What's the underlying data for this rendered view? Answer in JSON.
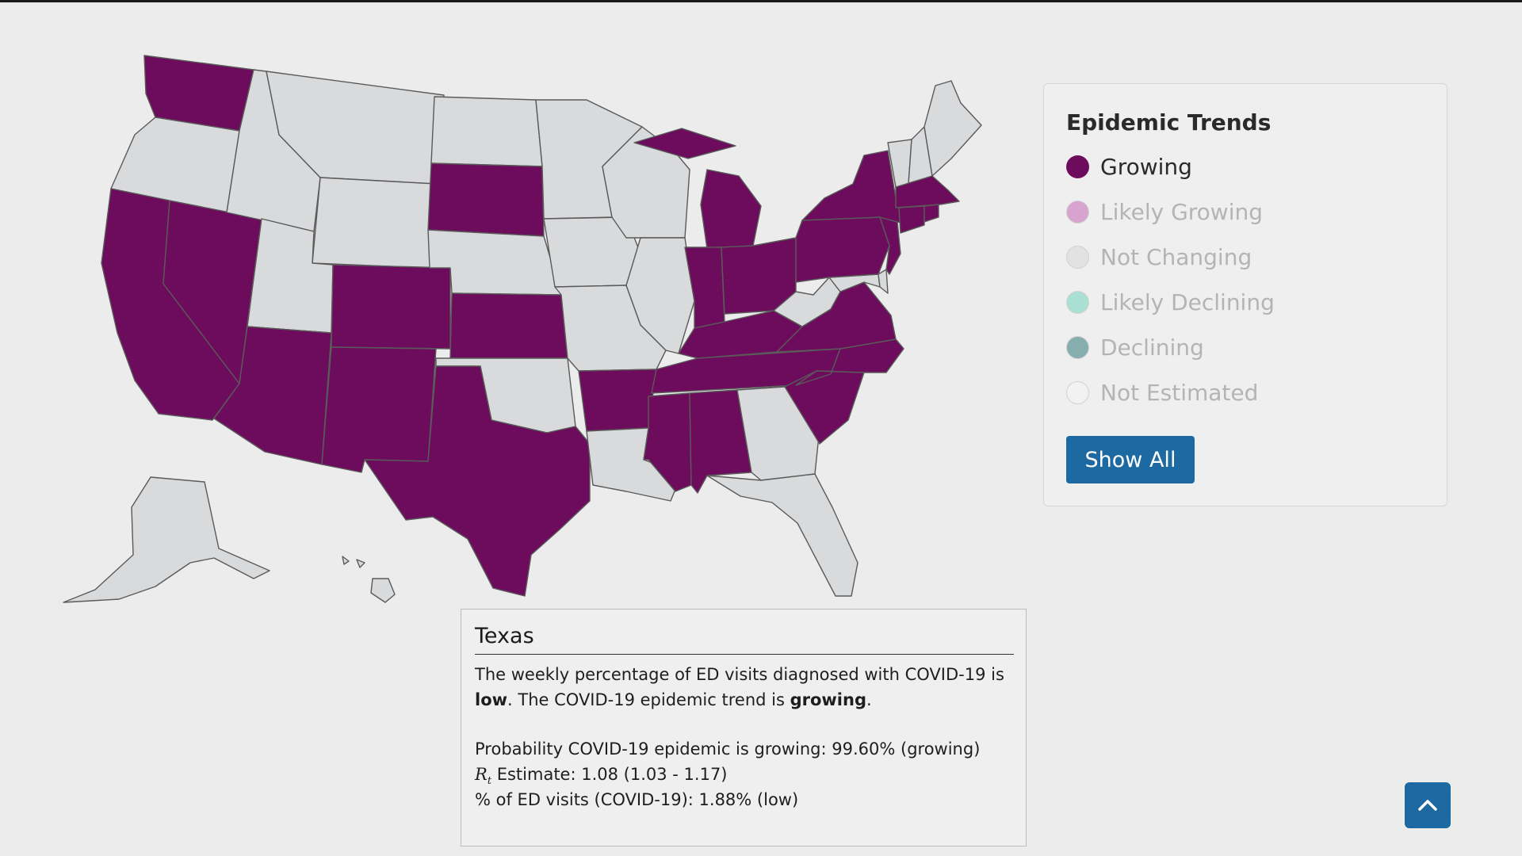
{
  "legend": {
    "title": "Epidemic Trends",
    "items": [
      {
        "label": "Growing",
        "color": "#6d0b5c",
        "active": true
      },
      {
        "label": "Likely Growing",
        "color": "#d9a3cf",
        "active": false
      },
      {
        "label": "Not Changing",
        "color": "#e2e2e2",
        "active": false
      },
      {
        "label": "Likely Declining",
        "color": "#a9e0d3",
        "active": false
      },
      {
        "label": "Declining",
        "color": "#86aeae",
        "active": false
      },
      {
        "label": "Not Estimated",
        "color": "#f2f2f2",
        "active": false
      }
    ],
    "button_label": "Show All"
  },
  "map": {
    "colors": {
      "growing": "#6d0b5c",
      "not_growing": "#d9dadc",
      "border": "#5a5a5a"
    },
    "states": {
      "WA": "Growing",
      "OR": "",
      "CA": "Growing",
      "NV": "Growing",
      "ID": "",
      "MT": "",
      "WY": "",
      "UT": "",
      "AZ": "Growing",
      "CO": "Growing",
      "NM": "Growing",
      "ND": "",
      "SD": "Growing",
      "NE": "",
      "KS": "Growing",
      "OK": "",
      "TX": "Growing",
      "MN": "",
      "IA": "",
      "MO": "",
      "AR": "Growing",
      "LA": "",
      "WI": "",
      "IL": "",
      "MI": "Growing",
      "IN": "Growing",
      "OH": "Growing",
      "KY": "Growing",
      "TN": "Growing",
      "MS": "Growing",
      "AL": "Growing",
      "GA": "",
      "FL": "",
      "SC": "Growing",
      "NC": "Growing",
      "VA": "Growing",
      "WV": "",
      "MD": "",
      "DE": "",
      "PA": "Growing",
      "NJ": "Growing",
      "NY": "Growing",
      "CT": "Growing",
      "RI": "Growing",
      "MA": "Growing",
      "VT": "",
      "NH": "",
      "ME": "",
      "AK": "",
      "HI": ""
    }
  },
  "selected_state": {
    "name": "Texas",
    "line1_prefix": "The weekly percentage of ED visits diagnosed with COVID-19 is",
    "level": "low",
    "line2_mid": ". The COVID-19 epidemic trend is ",
    "trend": "growing",
    "line2_end": ".",
    "prob_label": "Probability COVID-19 epidemic is growing: 99.60% (growing)",
    "rt_symbol": "R",
    "rt_sub": "t",
    "rt_text": " Estimate: 1.08 (1.03 - 1.17)",
    "ed_label": "% of ED visits (COVID-19): 1.88% (low)"
  },
  "back_to_top_icon": "chevron-up-icon"
}
